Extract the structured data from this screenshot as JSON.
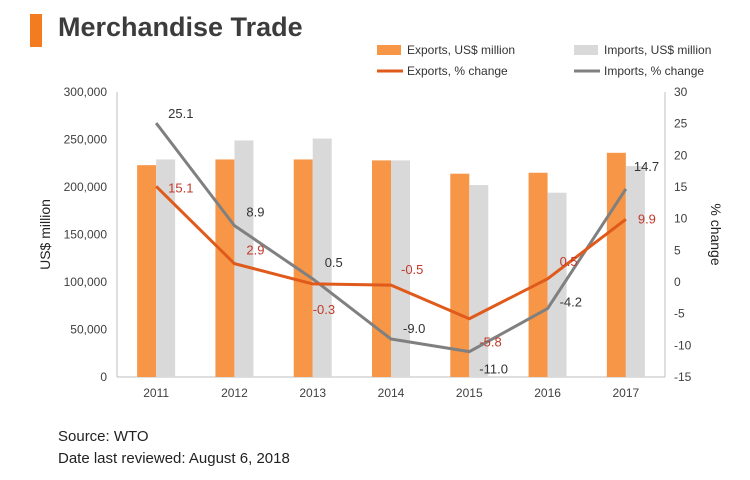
{
  "page": {
    "title": "Merchandise Trade",
    "source": "Source: WTO",
    "reviewed": "Date last reviewed: August 6, 2018"
  },
  "colors": {
    "exports_bar": "#f79646",
    "imports_bar": "#d9d9d9",
    "exports_line": "#e05a1c",
    "imports_line": "#808080",
    "exports_label": "#c0392b",
    "imports_label": "#333333"
  },
  "chart_data": {
    "type": "bar",
    "title": "Merchandise Trade",
    "categories": [
      "2011",
      "2012",
      "2013",
      "2014",
      "2015",
      "2016",
      "2017"
    ],
    "ylabel": "US$ million",
    "y2label": "% change",
    "ylim": [
      0,
      300000
    ],
    "y2lim": [
      -15,
      30
    ],
    "yticks": [
      "0",
      "50,000",
      "100,000",
      "150,000",
      "200,000",
      "250,000",
      "300,000"
    ],
    "y2ticks": [
      "-15",
      "-10",
      "-5",
      "0",
      "5",
      "10",
      "15",
      "20",
      "25",
      "30"
    ],
    "legend_position": "top-right",
    "grid": false,
    "series": [
      {
        "name": "Exports, US$ million",
        "kind": "bar",
        "values": [
          223000,
          229000,
          229000,
          228000,
          214000,
          215000,
          236000
        ]
      },
      {
        "name": "Imports, US$ million",
        "kind": "bar",
        "values": [
          229000,
          249000,
          251000,
          228000,
          202000,
          194000,
          222000
        ]
      },
      {
        "name": "Exports, % change",
        "kind": "line",
        "axis": "right",
        "values": [
          15.1,
          2.9,
          -0.3,
          -0.5,
          -5.8,
          0.5,
          9.9
        ],
        "labels": [
          "15.1",
          "2.9",
          "-0.3",
          "-0.5",
          "-5.8",
          "0.5",
          "9.9"
        ]
      },
      {
        "name": "Imports, % change",
        "kind": "line",
        "axis": "right",
        "values": [
          25.1,
          8.9,
          0.5,
          -9.0,
          -11.0,
          -4.2,
          14.7
        ],
        "labels": [
          "25.1",
          "8.9",
          "0.5",
          "-9.0",
          "-11.0",
          "-4.2",
          "14.7"
        ]
      }
    ]
  }
}
